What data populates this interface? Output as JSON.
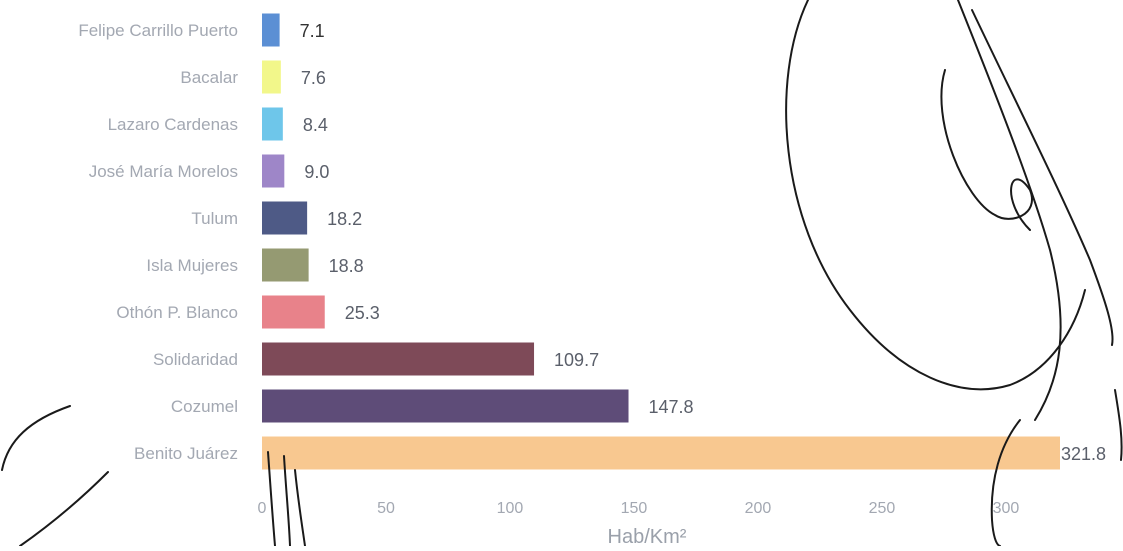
{
  "chart_data": {
    "type": "bar",
    "orientation": "horizontal",
    "categories": [
      "Felipe Carrillo Puerto",
      "Bacalar",
      "Lazaro Cardenas",
      "José María Morelos",
      "Tulum",
      "Isla Mujeres",
      "Othón P. Blanco",
      "Solidaridad",
      "Cozumel",
      "Benito Juárez"
    ],
    "values": [
      7.1,
      7.6,
      8.4,
      9.0,
      18.2,
      18.8,
      25.3,
      109.7,
      147.8,
      321.8
    ],
    "value_labels": [
      "7.1",
      "7.6",
      "8.4",
      "9.0",
      "18.2",
      "18.8",
      "25.3",
      "109.7",
      "147.8",
      "321.8"
    ],
    "colors": [
      "#5b8fd4",
      "#f2f78a",
      "#6ec6ea",
      "#9e86c8",
      "#4e5a86",
      "#959a72",
      "#e8828a",
      "#7e4a58",
      "#5e4c78",
      "#f8c890"
    ],
    "xlabel": "Hab/Km²",
    "x_ticks": [
      "0",
      "50",
      "100",
      "150",
      "200",
      "250",
      "300"
    ],
    "xlim": [
      0,
      321.8
    ],
    "title": "",
    "ylabel": "",
    "grid": false,
    "legend": "none"
  }
}
